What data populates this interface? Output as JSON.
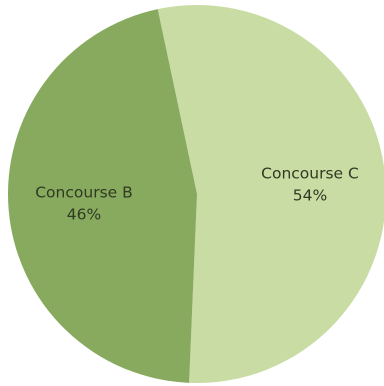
{
  "chart_data": {
    "type": "pie",
    "title": "",
    "slices": [
      {
        "label": "Concourse C",
        "value": 54,
        "value_label": "54%",
        "color": "#c9dca4"
      },
      {
        "label": "Concourse B",
        "value": 46,
        "value_label": "46%",
        "color": "#87aa5e"
      }
    ],
    "start_angle_deg": -12,
    "direction": "clockwise",
    "legend": "none"
  }
}
